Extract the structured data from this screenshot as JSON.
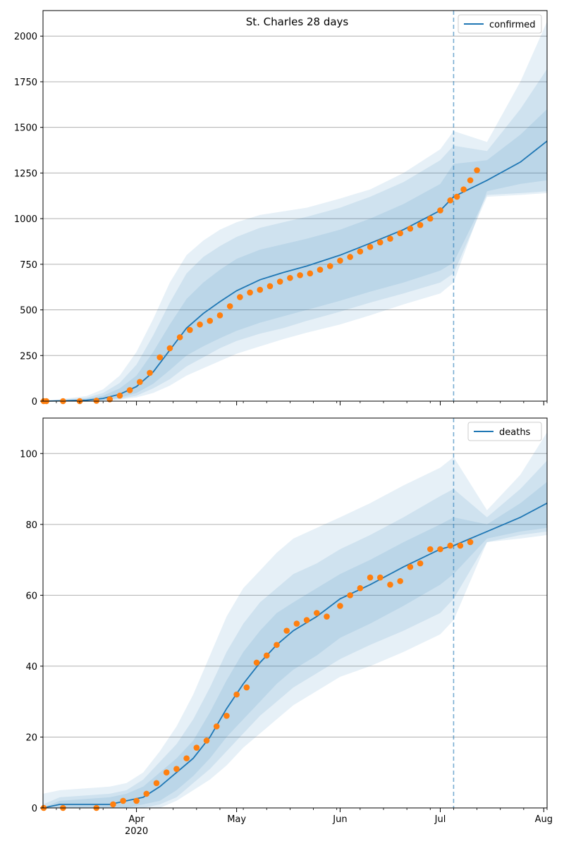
{
  "figure_title": "St. Charles 28 days",
  "colors": {
    "model_line": "#1f77b4",
    "band": "#1f77b4",
    "observed": "#ff7f0e",
    "grid": "#b0b0b0",
    "forecast_line": "#1f77b4"
  },
  "x_ticks": {
    "major": [
      {
        "date": "2020-04-01",
        "label": "Apr",
        "sublabel": "2020"
      },
      {
        "date": "2020-05-01",
        "label": "May",
        "sublabel": ""
      },
      {
        "date": "2020-06-01",
        "label": "Jun",
        "sublabel": ""
      },
      {
        "date": "2020-07-01",
        "label": "Jul",
        "sublabel": ""
      },
      {
        "date": "2020-08-01",
        "label": "Aug",
        "sublabel": ""
      }
    ],
    "minor_weekly_from": "2020-03-01",
    "minor_weekly_to": "2020-08-02"
  },
  "chart_data": [
    {
      "type": "line",
      "title": "St. Charles 28 days",
      "legend": {
        "position": "top-right",
        "entries": [
          "confirmed"
        ]
      },
      "xlim": [
        "2020-03-04",
        "2020-08-02"
      ],
      "ylim": [
        0,
        2140
      ],
      "y_ticks": [
        0,
        250,
        500,
        750,
        1000,
        1250,
        1500,
        1750,
        2000
      ],
      "grid": "horizontal",
      "forecast_start": "2020-07-05",
      "model": {
        "name": "confirmed",
        "x": [
          "2020-03-04",
          "2020-03-10",
          "2020-03-17",
          "2020-03-22",
          "2020-03-27",
          "2020-04-01",
          "2020-04-06",
          "2020-04-11",
          "2020-04-16",
          "2020-04-21",
          "2020-04-26",
          "2020-05-01",
          "2020-05-08",
          "2020-05-15",
          "2020-05-22",
          "2020-06-01",
          "2020-06-10",
          "2020-06-20",
          "2020-07-01",
          "2020-07-05",
          "2020-07-15",
          "2020-07-25",
          "2020-08-02"
        ],
        "y": [
          0,
          2,
          5,
          15,
          38,
          80,
          160,
          280,
          400,
          480,
          545,
          605,
          665,
          705,
          740,
          800,
          865,
          940,
          1045,
          1120,
          1210,
          1310,
          1425
        ],
        "bands": [
          {
            "lower": [
              0,
              0,
              1,
              5,
              18,
              45,
              95,
              170,
              250,
              300,
              345,
              385,
              430,
              465,
              500,
              550,
              600,
              650,
              715,
              760,
              1130,
              1140,
              1150
            ],
            "upper": [
              0,
              5,
              12,
              30,
              70,
              140,
              270,
              420,
              560,
              650,
              720,
              780,
              830,
              860,
              890,
              940,
              1000,
              1080,
              1190,
              1300,
              1320,
              1460,
              1600
            ]
          },
          {
            "lower": [
              0,
              0,
              0,
              3,
              12,
              30,
              70,
              120,
              190,
              240,
              290,
              330,
              370,
              400,
              440,
              490,
              540,
              590,
              650,
              700,
              1120,
              1130,
              1140
            ],
            "upper": [
              0,
              8,
              18,
              45,
              100,
              200,
              360,
              540,
              700,
              790,
              850,
              900,
              950,
              980,
              1010,
              1060,
              1120,
              1200,
              1320,
              1400,
              1370,
              1600,
              1820
            ]
          },
          {
            "lower": [
              0,
              0,
              0,
              2,
              8,
              20,
              45,
              85,
              140,
              180,
              220,
              260,
              300,
              340,
              375,
              420,
              470,
              530,
              590,
              650,
              1150,
              1190,
              1210
            ],
            "upper": [
              0,
              12,
              28,
              65,
              140,
              270,
              450,
              650,
              800,
              880,
              940,
              980,
              1020,
              1040,
              1060,
              1110,
              1160,
              1250,
              1380,
              1480,
              1420,
              1750,
              2080
            ]
          }
        ]
      },
      "observed": {
        "x": [
          "2020-03-01",
          "2020-03-05",
          "2020-03-10",
          "2020-03-15",
          "2020-03-20",
          "2020-03-24",
          "2020-03-27",
          "2020-03-30",
          "2020-04-02",
          "2020-04-05",
          "2020-04-08",
          "2020-04-11",
          "2020-04-14",
          "2020-04-17",
          "2020-04-20",
          "2020-04-23",
          "2020-04-26",
          "2020-04-29",
          "2020-05-02",
          "2020-05-05",
          "2020-05-08",
          "2020-05-11",
          "2020-05-14",
          "2020-05-17",
          "2020-05-20",
          "2020-05-23",
          "2020-05-26",
          "2020-05-29",
          "2020-06-01",
          "2020-06-04",
          "2020-06-07",
          "2020-06-10",
          "2020-06-13",
          "2020-06-16",
          "2020-06-19",
          "2020-06-22",
          "2020-06-25",
          "2020-06-28",
          "2020-07-01",
          "2020-07-04",
          "2020-07-06",
          "2020-07-08",
          "2020-07-10",
          "2020-07-12"
        ],
        "y": [
          0,
          0,
          0,
          0,
          2,
          10,
          30,
          60,
          105,
          155,
          240,
          290,
          350,
          390,
          420,
          440,
          470,
          520,
          570,
          595,
          610,
          630,
          655,
          675,
          690,
          700,
          720,
          740,
          770,
          790,
          820,
          845,
          870,
          890,
          920,
          945,
          965,
          1000,
          1045,
          1100,
          1120,
          1160,
          1210,
          1265
        ]
      }
    },
    {
      "type": "line",
      "title": "",
      "legend": {
        "position": "top-right",
        "entries": [
          "deaths"
        ]
      },
      "xlim": [
        "2020-03-04",
        "2020-08-02"
      ],
      "ylim": [
        0,
        110
      ],
      "y_ticks": [
        0,
        20,
        40,
        60,
        80,
        100
      ],
      "grid": "horizontal",
      "forecast_start": "2020-07-05",
      "model": {
        "name": "deaths",
        "x": [
          "2020-03-04",
          "2020-03-09",
          "2020-03-24",
          "2020-03-29",
          "2020-04-03",
          "2020-04-08",
          "2020-04-13",
          "2020-04-18",
          "2020-04-23",
          "2020-04-28",
          "2020-05-03",
          "2020-05-08",
          "2020-05-13",
          "2020-05-18",
          "2020-05-25",
          "2020-06-01",
          "2020-06-10",
          "2020-06-20",
          "2020-07-01",
          "2020-07-05",
          "2020-07-15",
          "2020-07-25",
          "2020-08-02"
        ],
        "y": [
          0,
          1,
          1,
          2,
          3,
          6,
          10,
          14,
          20,
          28,
          35,
          41,
          46,
          50,
          54,
          59,
          63,
          68,
          73,
          74,
          78,
          82,
          86
        ],
        "bands": [
          {
            "lower": [
              0,
              0,
              0,
              0,
              1,
              2,
              5,
              9,
              14,
              20,
              25,
              30,
              35,
              39,
              43,
              48,
              52,
              57,
              63,
              66,
              76,
              78,
              79
            ],
            "upper": [
              0,
              2,
              3,
              4,
              6,
              10,
              14,
              19,
              27,
              36,
              44,
              50,
              55,
              58,
              62,
              66,
              70,
              75,
              80,
              82,
              80,
              86,
              92
            ]
          },
          {
            "lower": [
              0,
              0,
              0,
              0,
              0,
              1,
              3,
              7,
              11,
              16,
              21,
              26,
              30,
              34,
              38,
              42,
              46,
              50,
              55,
              59,
              75,
              77,
              78
            ],
            "upper": [
              1,
              3,
              4,
              5,
              8,
              13,
              18,
              25,
              34,
              44,
              52,
              58,
              62,
              66,
              69,
              73,
              77,
              82,
              88,
              90,
              82,
              90,
              98
            ]
          },
          {
            "lower": [
              0,
              0,
              0,
              0,
              0,
              0,
              2,
              5,
              8,
              12,
              17,
              21,
              25,
              29,
              33,
              37,
              40,
              44,
              49,
              53,
              75,
              76,
              77
            ],
            "upper": [
              4,
              5,
              6,
              7,
              10,
              16,
              23,
              32,
              43,
              54,
              62,
              67,
              72,
              76,
              79,
              82,
              86,
              91,
              96,
              99,
              84,
              94,
              106
            ]
          }
        ]
      },
      "observed": {
        "x": [
          "2020-03-01",
          "2020-03-10",
          "2020-03-20",
          "2020-03-25",
          "2020-03-28",
          "2020-04-01",
          "2020-04-04",
          "2020-04-07",
          "2020-04-10",
          "2020-04-13",
          "2020-04-16",
          "2020-04-19",
          "2020-04-22",
          "2020-04-25",
          "2020-04-28",
          "2020-05-01",
          "2020-05-04",
          "2020-05-07",
          "2020-05-10",
          "2020-05-13",
          "2020-05-16",
          "2020-05-19",
          "2020-05-22",
          "2020-05-25",
          "2020-05-28",
          "2020-06-01",
          "2020-06-04",
          "2020-06-07",
          "2020-06-10",
          "2020-06-13",
          "2020-06-16",
          "2020-06-19",
          "2020-06-22",
          "2020-06-25",
          "2020-06-28",
          "2020-07-01",
          "2020-07-04",
          "2020-07-07",
          "2020-07-10"
        ],
        "y": [
          0,
          0,
          0,
          1,
          2,
          2,
          4,
          7,
          10,
          11,
          14,
          17,
          19,
          23,
          26,
          32,
          34,
          41,
          43,
          46,
          50,
          52,
          53,
          55,
          54,
          57,
          60,
          62,
          65,
          65,
          63,
          64,
          68,
          69,
          73,
          73,
          74,
          74,
          75
        ]
      }
    }
  ]
}
